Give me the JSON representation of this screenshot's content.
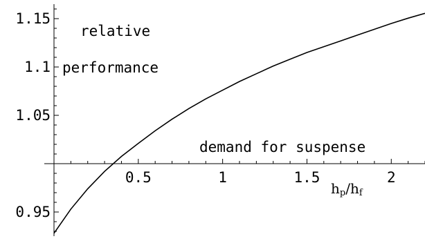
{
  "chart_data": {
    "type": "line",
    "title": "",
    "xlabel": "h_p/h_f",
    "ylabel": "",
    "xlim": [
      0,
      2.2
    ],
    "ylim": [
      0.925,
      1.165
    ],
    "x_axis_crosses_y_at": 1.0,
    "grid": false,
    "x_ticks": [
      0.5,
      1,
      1.5,
      2
    ],
    "x_tick_labels": [
      "0.5",
      "1",
      "1.5",
      "2"
    ],
    "y_ticks": [
      0.95,
      1.05,
      1.1,
      1.15
    ],
    "y_tick_labels": [
      "0.95",
      "1.05",
      "1.1",
      "1.15"
    ],
    "annotations": [
      "relative",
      "performance",
      "demand for suspense"
    ],
    "xlabel_parts": {
      "h1": "h",
      "sub1": "p",
      "sep": "/",
      "h2": "h",
      "sub2": "f"
    },
    "series": [
      {
        "x": [
          0,
          0.1,
          0.2,
          0.3,
          0.4,
          0.5,
          0.6,
          0.7,
          0.8,
          0.9,
          1.0,
          1.1,
          1.2,
          1.3,
          1.4,
          1.5,
          1.6,
          1.7,
          1.8,
          1.9,
          2.0,
          2.1,
          2.2
        ],
        "y": [
          0.928,
          0.953,
          0.974,
          0.992,
          1.0075,
          1.021,
          1.034,
          1.046,
          1.057,
          1.067,
          1.076,
          1.085,
          1.093,
          1.101,
          1.108,
          1.115,
          1.121,
          1.127,
          1.133,
          1.139,
          1.145,
          1.1505,
          1.1555
        ]
      }
    ]
  }
}
